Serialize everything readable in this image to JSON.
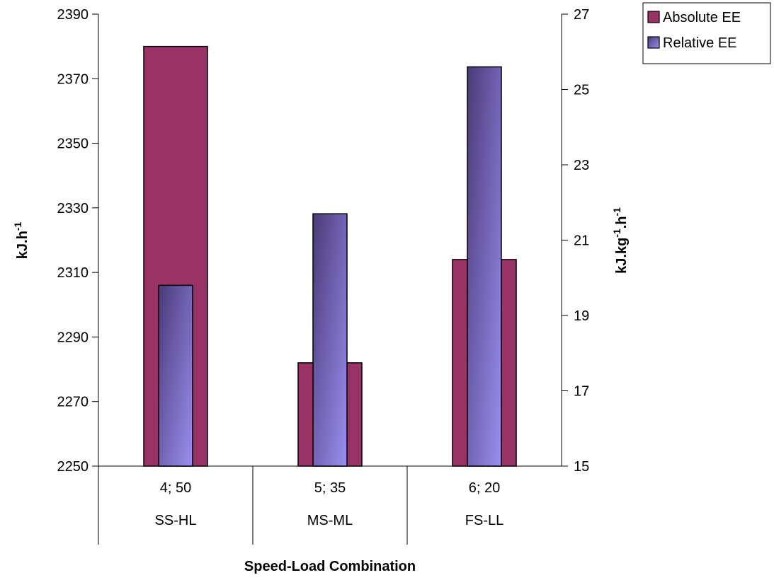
{
  "chart_data": {
    "type": "bar",
    "title": "",
    "xlabel": "Speed-Load Combination",
    "categories": [
      {
        "line1": "4; 50",
        "line2": "SS-HL"
      },
      {
        "line1": "5; 35",
        "line2": "MS-ML"
      },
      {
        "line1": "6; 20",
        "line2": "FS-LL"
      }
    ],
    "y_left": {
      "label": "kJ.h",
      "label_sup": "-1",
      "ylim": [
        2250,
        2390
      ],
      "ticks": [
        2250,
        2270,
        2290,
        2310,
        2330,
        2350,
        2370,
        2390
      ]
    },
    "y_right": {
      "label_parts": [
        {
          "text": "kJ.kg",
          "sup": false
        },
        {
          "text": "-1",
          "sup": true
        },
        {
          "text": ".h",
          "sup": false
        },
        {
          "text": "-1",
          "sup": true
        }
      ],
      "ylim": [
        15,
        27
      ],
      "ticks": [
        15,
        17,
        19,
        21,
        23,
        25,
        27
      ]
    },
    "series": [
      {
        "name": "Absolute EE",
        "axis": "left",
        "values": [
          2380,
          2282,
          2314
        ],
        "color": "#993366"
      },
      {
        "name": "Relative EE",
        "axis": "right",
        "values": [
          19.8,
          21.7,
          25.6
        ],
        "color": "#6f5fb0"
      }
    ],
    "legend_position": "top-right",
    "grid": false
  }
}
